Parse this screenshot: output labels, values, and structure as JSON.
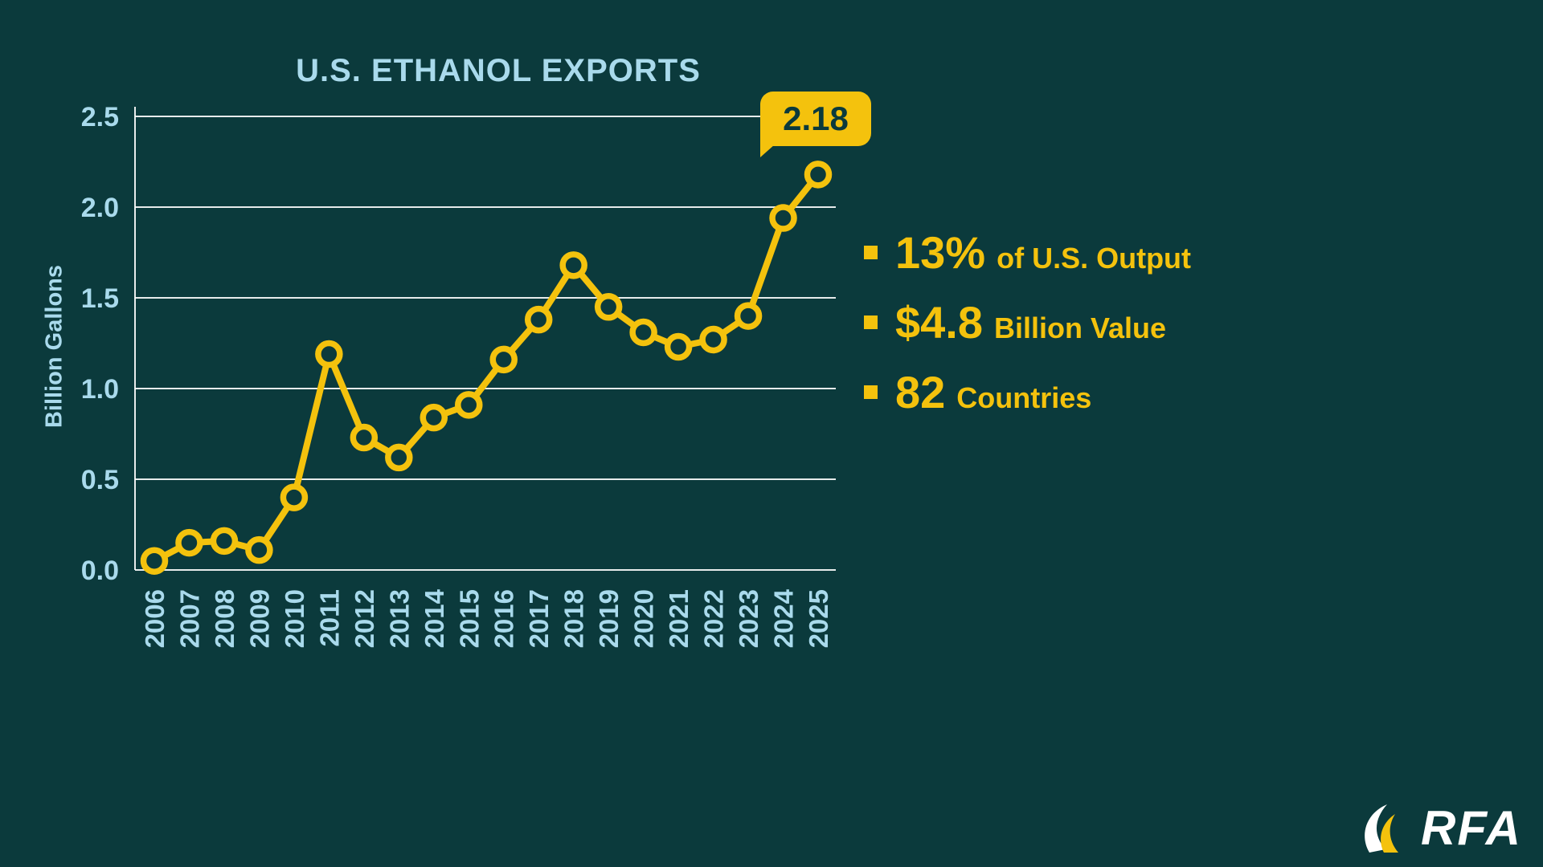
{
  "colors": {
    "background": "#0B3A3C",
    "accent_yellow": "#F4C20D",
    "light_blue": "#A9DAEC",
    "grid": "#FFFFFF",
    "callout_text": "#0B3A3C",
    "logo_white": "#FFFFFF"
  },
  "chart_data": {
    "type": "line",
    "title": "U.S. ETHANOL EXPORTS",
    "ylabel": "Billion Gallons",
    "ylim": [
      0,
      2.5
    ],
    "yticks": [
      "0.0",
      "0.5",
      "1.0",
      "1.5",
      "2.0",
      "2.5"
    ],
    "categories": [
      "2006",
      "2007",
      "2008",
      "2009",
      "2010",
      "2011",
      "2012",
      "2013",
      "2014",
      "2015",
      "2016",
      "2017",
      "2018",
      "2019",
      "2020",
      "2021",
      "2022",
      "2023",
      "2024",
      "2025"
    ],
    "values": [
      0.05,
      0.15,
      0.16,
      0.11,
      0.4,
      1.19,
      0.73,
      0.62,
      0.84,
      0.91,
      1.16,
      1.38,
      1.68,
      1.45,
      1.31,
      1.23,
      1.27,
      1.4,
      1.94,
      2.18
    ],
    "grid": "horizontal",
    "legend": "none",
    "callout": {
      "label": "2.18",
      "year": "2025"
    }
  },
  "annotations": {
    "items": [
      {
        "big": "13%",
        "small": "of U.S. Output"
      },
      {
        "big": "$4.8",
        "small": "Billion Value"
      },
      {
        "big": "82",
        "small": "Countries"
      }
    ]
  },
  "logo": {
    "text": "RFA"
  }
}
